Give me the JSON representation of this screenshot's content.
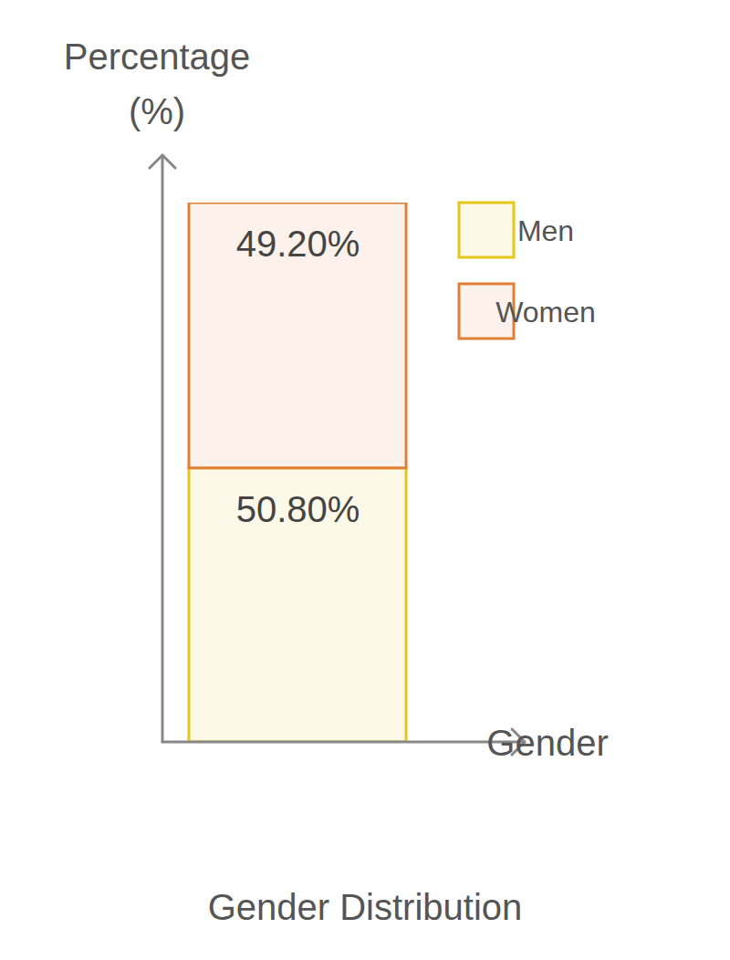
{
  "chart_data": {
    "type": "bar",
    "title": "Gender Distribution",
    "x_label": "Gender",
    "y_label": "Percentage (%)",
    "categories": [
      null
    ],
    "series": [
      {
        "name": "Men",
        "color": "#e6c619",
        "values": [
          50.8
        ],
        "value_labels": [
          "50.80%"
        ]
      },
      {
        "name": "Women",
        "color": "#e07f35",
        "values": [
          49.2
        ],
        "value_labels": [
          "49.20%"
        ]
      }
    ],
    "stacked": true,
    "data_labels": true,
    "tick_labels": false,
    "legend": "top-right",
    "ylim": [
      0,
      100
    ],
    "yticks": []
  }
}
